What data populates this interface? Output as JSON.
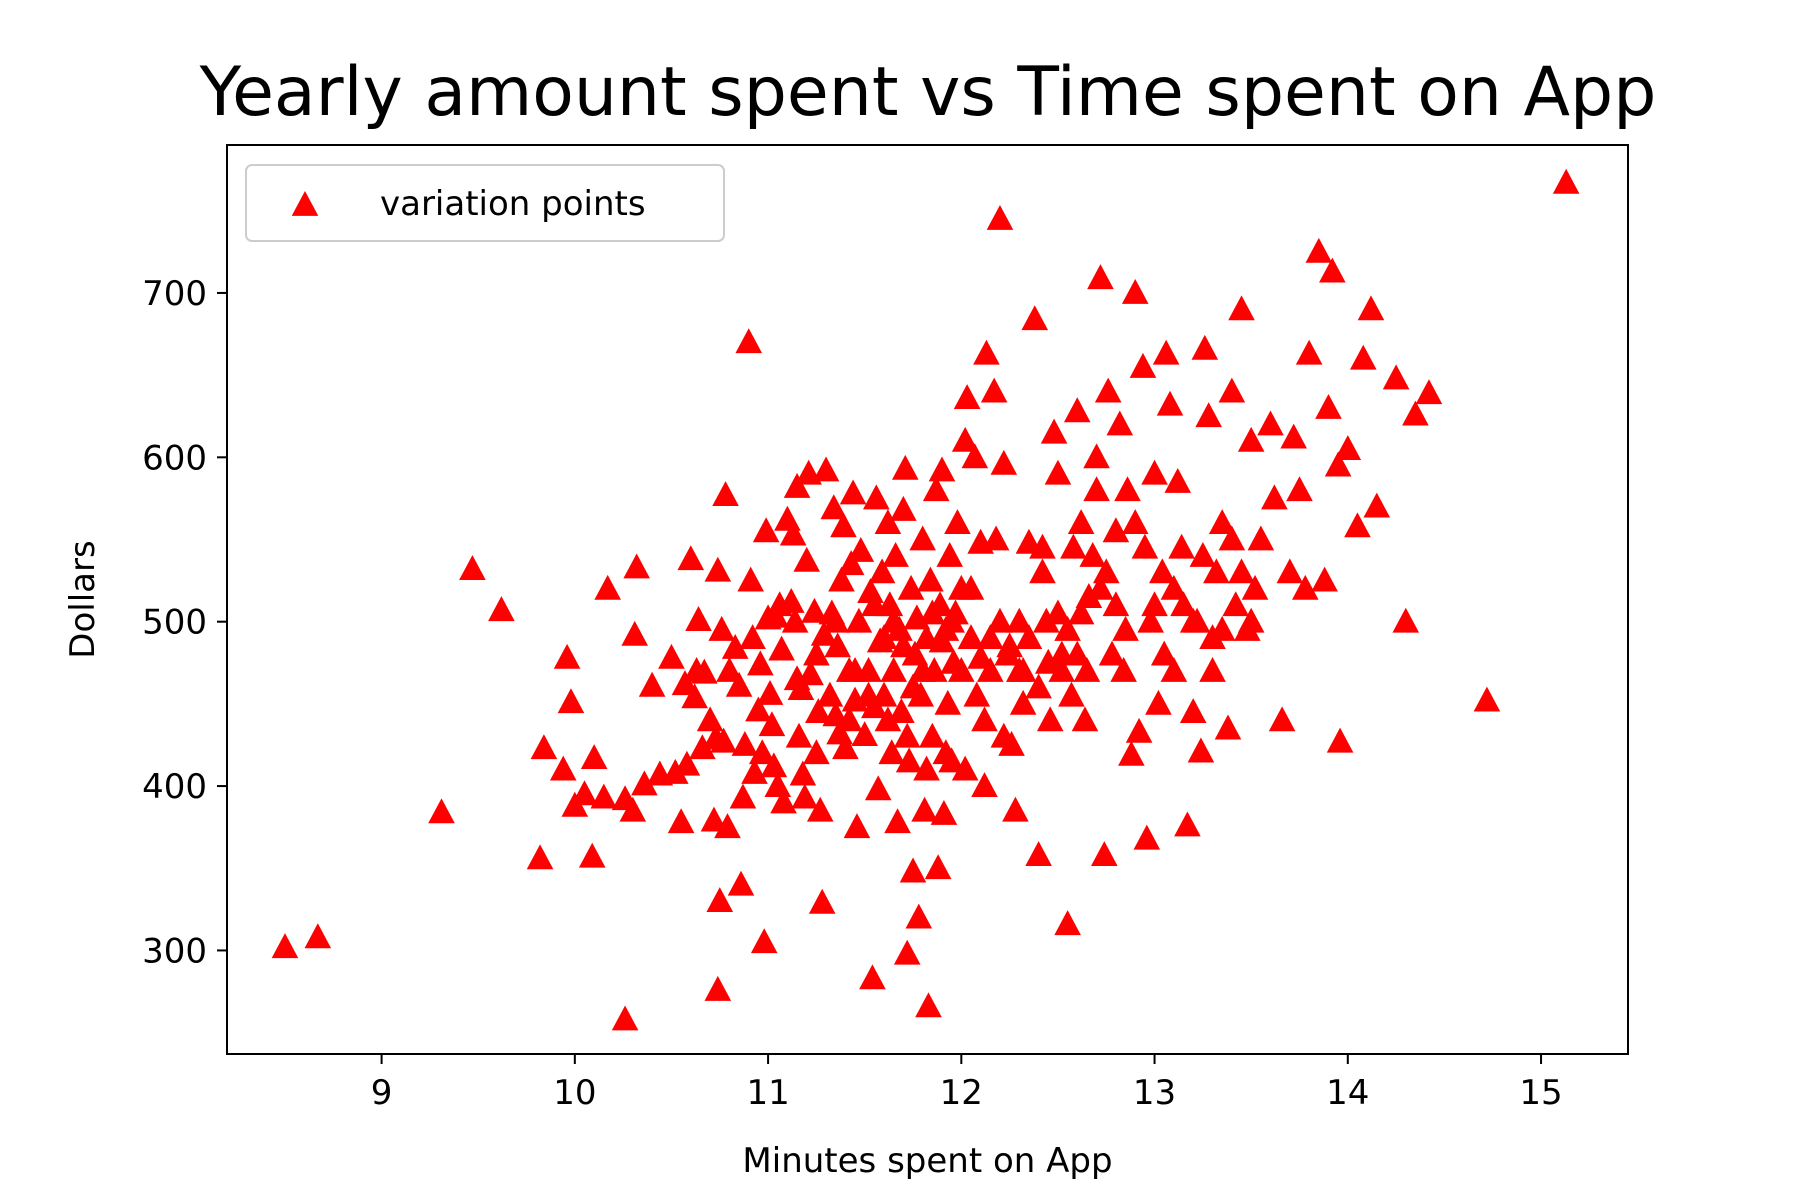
{
  "chart_data": {
    "type": "scatter",
    "title": "Yearly amount spent vs Time spent on App",
    "xlabel": "Minutes spent on App",
    "ylabel": "Dollars",
    "xlim": [
      8.2,
      15.45
    ],
    "ylim": [
      237,
      790
    ],
    "xticks": [
      9,
      10,
      11,
      12,
      13,
      14,
      15
    ],
    "yticks": [
      300,
      400,
      500,
      600,
      700
    ],
    "grid": false,
    "legend_position": "top-left",
    "marker_color": "#ff0000",
    "marker": "triangle-up",
    "series": [
      {
        "name": "variation points",
        "points": [
          [
            8.5,
            302
          ],
          [
            8.67,
            308
          ],
          [
            9.31,
            384
          ],
          [
            9.47,
            532
          ],
          [
            9.62,
            507
          ],
          [
            9.82,
            356
          ],
          [
            9.84,
            423
          ],
          [
            9.94,
            410
          ],
          [
            9.96,
            478
          ],
          [
            9.98,
            451
          ],
          [
            10.0,
            388
          ],
          [
            10.05,
            395
          ],
          [
            10.09,
            357
          ],
          [
            10.1,
            417
          ],
          [
            10.15,
            393
          ],
          [
            10.17,
            520
          ],
          [
            10.26,
            258
          ],
          [
            10.26,
            392
          ],
          [
            10.3,
            385
          ],
          [
            10.31,
            492
          ],
          [
            10.32,
            533
          ],
          [
            10.36,
            401
          ],
          [
            10.4,
            461
          ],
          [
            10.44,
            407
          ],
          [
            10.5,
            478
          ],
          [
            10.52,
            408
          ],
          [
            10.55,
            378
          ],
          [
            10.57,
            462
          ],
          [
            10.58,
            413
          ],
          [
            10.6,
            538
          ],
          [
            10.62,
            454
          ],
          [
            10.63,
            470
          ],
          [
            10.64,
            501
          ],
          [
            10.66,
            423
          ],
          [
            10.67,
            469
          ],
          [
            10.7,
            440
          ],
          [
            10.72,
            379
          ],
          [
            10.73,
            429
          ],
          [
            10.74,
            276
          ],
          [
            10.74,
            531
          ],
          [
            10.75,
            330
          ],
          [
            10.76,
            495
          ],
          [
            10.77,
            427
          ],
          [
            10.78,
            577
          ],
          [
            10.79,
            375
          ],
          [
            10.8,
            470
          ],
          [
            10.83,
            484
          ],
          [
            10.85,
            461
          ],
          [
            10.86,
            340
          ],
          [
            10.87,
            393
          ],
          [
            10.88,
            425
          ],
          [
            10.9,
            670
          ],
          [
            10.91,
            525
          ],
          [
            10.92,
            490
          ],
          [
            10.93,
            408
          ],
          [
            10.95,
            446
          ],
          [
            10.96,
            474
          ],
          [
            10.97,
            420
          ],
          [
            10.98,
            305
          ],
          [
            10.99,
            555
          ],
          [
            11.0,
            502
          ],
          [
            11.01,
            456
          ],
          [
            11.02,
            437
          ],
          [
            11.03,
            412
          ],
          [
            11.04,
            503
          ],
          [
            11.05,
            400
          ],
          [
            11.06,
            510
          ],
          [
            11.07,
            483
          ],
          [
            11.08,
            390
          ],
          [
            11.1,
            562
          ],
          [
            11.12,
            512
          ],
          [
            11.13,
            553
          ],
          [
            11.14,
            500
          ],
          [
            11.15,
            582
          ],
          [
            11.16,
            430
          ],
          [
            11.17,
            459
          ],
          [
            11.18,
            407
          ],
          [
            11.19,
            393
          ],
          [
            11.2,
            537
          ],
          [
            11.21,
            590
          ],
          [
            11.22,
            468
          ],
          [
            11.24,
            506
          ],
          [
            11.25,
            420
          ],
          [
            11.26,
            445
          ],
          [
            11.27,
            385
          ],
          [
            11.28,
            329
          ],
          [
            11.29,
            492
          ],
          [
            11.3,
            592
          ],
          [
            11.32,
            455
          ],
          [
            11.33,
            505
          ],
          [
            11.34,
            569
          ],
          [
            11.35,
            443
          ],
          [
            11.36,
            485
          ],
          [
            11.37,
            432
          ],
          [
            11.38,
            525
          ],
          [
            11.39,
            558
          ],
          [
            11.4,
            423
          ],
          [
            11.42,
            470
          ],
          [
            11.43,
            535
          ],
          [
            11.44,
            578
          ],
          [
            11.45,
            452
          ],
          [
            11.46,
            375
          ],
          [
            11.47,
            500
          ],
          [
            11.48,
            543
          ],
          [
            11.5,
            431
          ],
          [
            11.52,
            470
          ],
          [
            11.53,
            518
          ],
          [
            11.54,
            283
          ],
          [
            11.55,
            448
          ],
          [
            11.56,
            575
          ],
          [
            11.57,
            398
          ],
          [
            11.58,
            488
          ],
          [
            11.59,
            530
          ],
          [
            11.6,
            455
          ],
          [
            11.62,
            560
          ],
          [
            11.63,
            510
          ],
          [
            11.64,
            420
          ],
          [
            11.65,
            470
          ],
          [
            11.66,
            540
          ],
          [
            11.67,
            378
          ],
          [
            11.68,
            495
          ],
          [
            11.69,
            445
          ],
          [
            11.7,
            568
          ],
          [
            11.71,
            593
          ],
          [
            11.72,
            298
          ],
          [
            11.73,
            415
          ],
          [
            11.74,
            520
          ],
          [
            11.75,
            348
          ],
          [
            11.76,
            480
          ],
          [
            11.77,
            502
          ],
          [
            11.78,
            320
          ],
          [
            11.79,
            455
          ],
          [
            11.8,
            550
          ],
          [
            11.81,
            385
          ],
          [
            11.82,
            490
          ],
          [
            11.83,
            266
          ],
          [
            11.84,
            525
          ],
          [
            11.85,
            430
          ],
          [
            11.86,
            470
          ],
          [
            11.87,
            580
          ],
          [
            11.88,
            350
          ],
          [
            11.89,
            510
          ],
          [
            11.9,
            592
          ],
          [
            11.91,
            383
          ],
          [
            11.92,
            495
          ],
          [
            11.93,
            450
          ],
          [
            11.94,
            540
          ],
          [
            11.95,
            415
          ],
          [
            11.96,
            475
          ],
          [
            11.97,
            505
          ],
          [
            11.98,
            560
          ],
          [
            12.0,
            470
          ],
          [
            12.02,
            610
          ],
          [
            12.03,
            636
          ],
          [
            12.05,
            520
          ],
          [
            12.07,
            600
          ],
          [
            12.08,
            455
          ],
          [
            12.1,
            548
          ],
          [
            12.12,
            400
          ],
          [
            12.13,
            663
          ],
          [
            12.15,
            490
          ],
          [
            12.17,
            640
          ],
          [
            12.18,
            550
          ],
          [
            12.2,
            745
          ],
          [
            12.22,
            596
          ],
          [
            12.24,
            480
          ],
          [
            12.26,
            425
          ],
          [
            12.28,
            385
          ],
          [
            12.3,
            500
          ],
          [
            12.32,
            470
          ],
          [
            12.35,
            548
          ],
          [
            12.38,
            684
          ],
          [
            12.4,
            358
          ],
          [
            12.42,
            530
          ],
          [
            12.44,
            500
          ],
          [
            12.46,
            440
          ],
          [
            12.48,
            615
          ],
          [
            12.5,
            590
          ],
          [
            12.52,
            480
          ],
          [
            12.55,
            316
          ],
          [
            12.57,
            455
          ],
          [
            12.6,
            628
          ],
          [
            12.62,
            560
          ],
          [
            12.64,
            440
          ],
          [
            12.66,
            515
          ],
          [
            12.7,
            600
          ],
          [
            12.72,
            709
          ],
          [
            12.74,
            358
          ],
          [
            12.76,
            640
          ],
          [
            12.78,
            480
          ],
          [
            12.8,
            555
          ],
          [
            12.82,
            620
          ],
          [
            12.84,
            470
          ],
          [
            12.86,
            580
          ],
          [
            12.88,
            419
          ],
          [
            12.9,
            700
          ],
          [
            12.92,
            433
          ],
          [
            12.94,
            655
          ],
          [
            12.96,
            368
          ],
          [
            12.98,
            500
          ],
          [
            13.0,
            590
          ],
          [
            13.02,
            450
          ],
          [
            13.04,
            530
          ],
          [
            13.06,
            663
          ],
          [
            13.08,
            632
          ],
          [
            13.1,
            470
          ],
          [
            13.12,
            585
          ],
          [
            13.14,
            545
          ],
          [
            13.17,
            376
          ],
          [
            13.2,
            445
          ],
          [
            13.22,
            500
          ],
          [
            13.24,
            421
          ],
          [
            13.26,
            666
          ],
          [
            13.28,
            625
          ],
          [
            13.3,
            470
          ],
          [
            13.32,
            530
          ],
          [
            13.35,
            560
          ],
          [
            13.38,
            435
          ],
          [
            13.4,
            640
          ],
          [
            13.42,
            510
          ],
          [
            13.45,
            690
          ],
          [
            13.48,
            495
          ],
          [
            13.5,
            610
          ],
          [
            13.55,
            550
          ],
          [
            13.6,
            620
          ],
          [
            13.66,
            440
          ],
          [
            13.7,
            530
          ],
          [
            13.75,
            580
          ],
          [
            13.8,
            663
          ],
          [
            13.85,
            725
          ],
          [
            13.88,
            525
          ],
          [
            13.92,
            713
          ],
          [
            13.95,
            595
          ],
          [
            14.0,
            605
          ],
          [
            14.05,
            558
          ],
          [
            14.08,
            660
          ],
          [
            14.12,
            690
          ],
          [
            14.15,
            570
          ],
          [
            14.25,
            648
          ],
          [
            14.3,
            500
          ],
          [
            14.35,
            626
          ],
          [
            14.42,
            639
          ],
          [
            14.72,
            452
          ],
          [
            15.13,
            767
          ],
          [
            13.96,
            427
          ],
          [
            13.72,
            612
          ],
          [
            13.9,
            630
          ],
          [
            13.78,
            520
          ],
          [
            13.62,
            575
          ],
          [
            13.52,
            520
          ],
          [
            11.95,
            500
          ],
          [
            11.9,
            488
          ],
          [
            12.05,
            490
          ],
          [
            11.85,
            505
          ],
          [
            12.1,
            478
          ],
          [
            11.8,
            470
          ],
          [
            12.25,
            485
          ],
          [
            12.35,
            490
          ],
          [
            12.45,
            475
          ],
          [
            12.55,
            495
          ],
          [
            12.15,
            470
          ],
          [
            11.7,
            485
          ],
          [
            11.75,
            460
          ],
          [
            12.2,
            500
          ],
          [
            12.4,
            460
          ],
          [
            12.6,
            480
          ],
          [
            12.3,
            470
          ],
          [
            11.65,
            500
          ],
          [
            11.6,
            490
          ],
          [
            12.0,
            520
          ],
          [
            12.5,
            505
          ],
          [
            12.65,
            470
          ],
          [
            11.55,
            510
          ],
          [
            12.75,
            530
          ],
          [
            12.85,
            495
          ],
          [
            13.05,
            480
          ],
          [
            13.15,
            510
          ],
          [
            13.25,
            540
          ],
          [
            13.35,
            495
          ],
          [
            13.45,
            530
          ],
          [
            11.45,
            470
          ],
          [
            11.35,
            500
          ],
          [
            11.25,
            480
          ],
          [
            11.15,
            465
          ],
          [
            12.95,
            545
          ],
          [
            13.1,
            520
          ],
          [
            12.7,
            580
          ],
          [
            12.9,
            560
          ],
          [
            13.0,
            510
          ],
          [
            12.68,
            540
          ],
          [
            12.8,
            510
          ],
          [
            12.62,
            505
          ],
          [
            12.72,
            520
          ],
          [
            12.52,
            470
          ],
          [
            12.42,
            545
          ],
          [
            13.2,
            500
          ],
          [
            13.3,
            490
          ],
          [
            13.4,
            550
          ],
          [
            13.5,
            500
          ],
          [
            12.58,
            545
          ],
          [
            11.82,
            410
          ],
          [
            12.02,
            410
          ],
          [
            11.92,
            420
          ],
          [
            12.12,
            440
          ],
          [
            11.72,
            430
          ],
          [
            11.62,
            440
          ],
          [
            11.52,
            455
          ],
          [
            11.42,
            440
          ],
          [
            12.22,
            430
          ],
          [
            12.32,
            450
          ]
        ]
      }
    ]
  }
}
